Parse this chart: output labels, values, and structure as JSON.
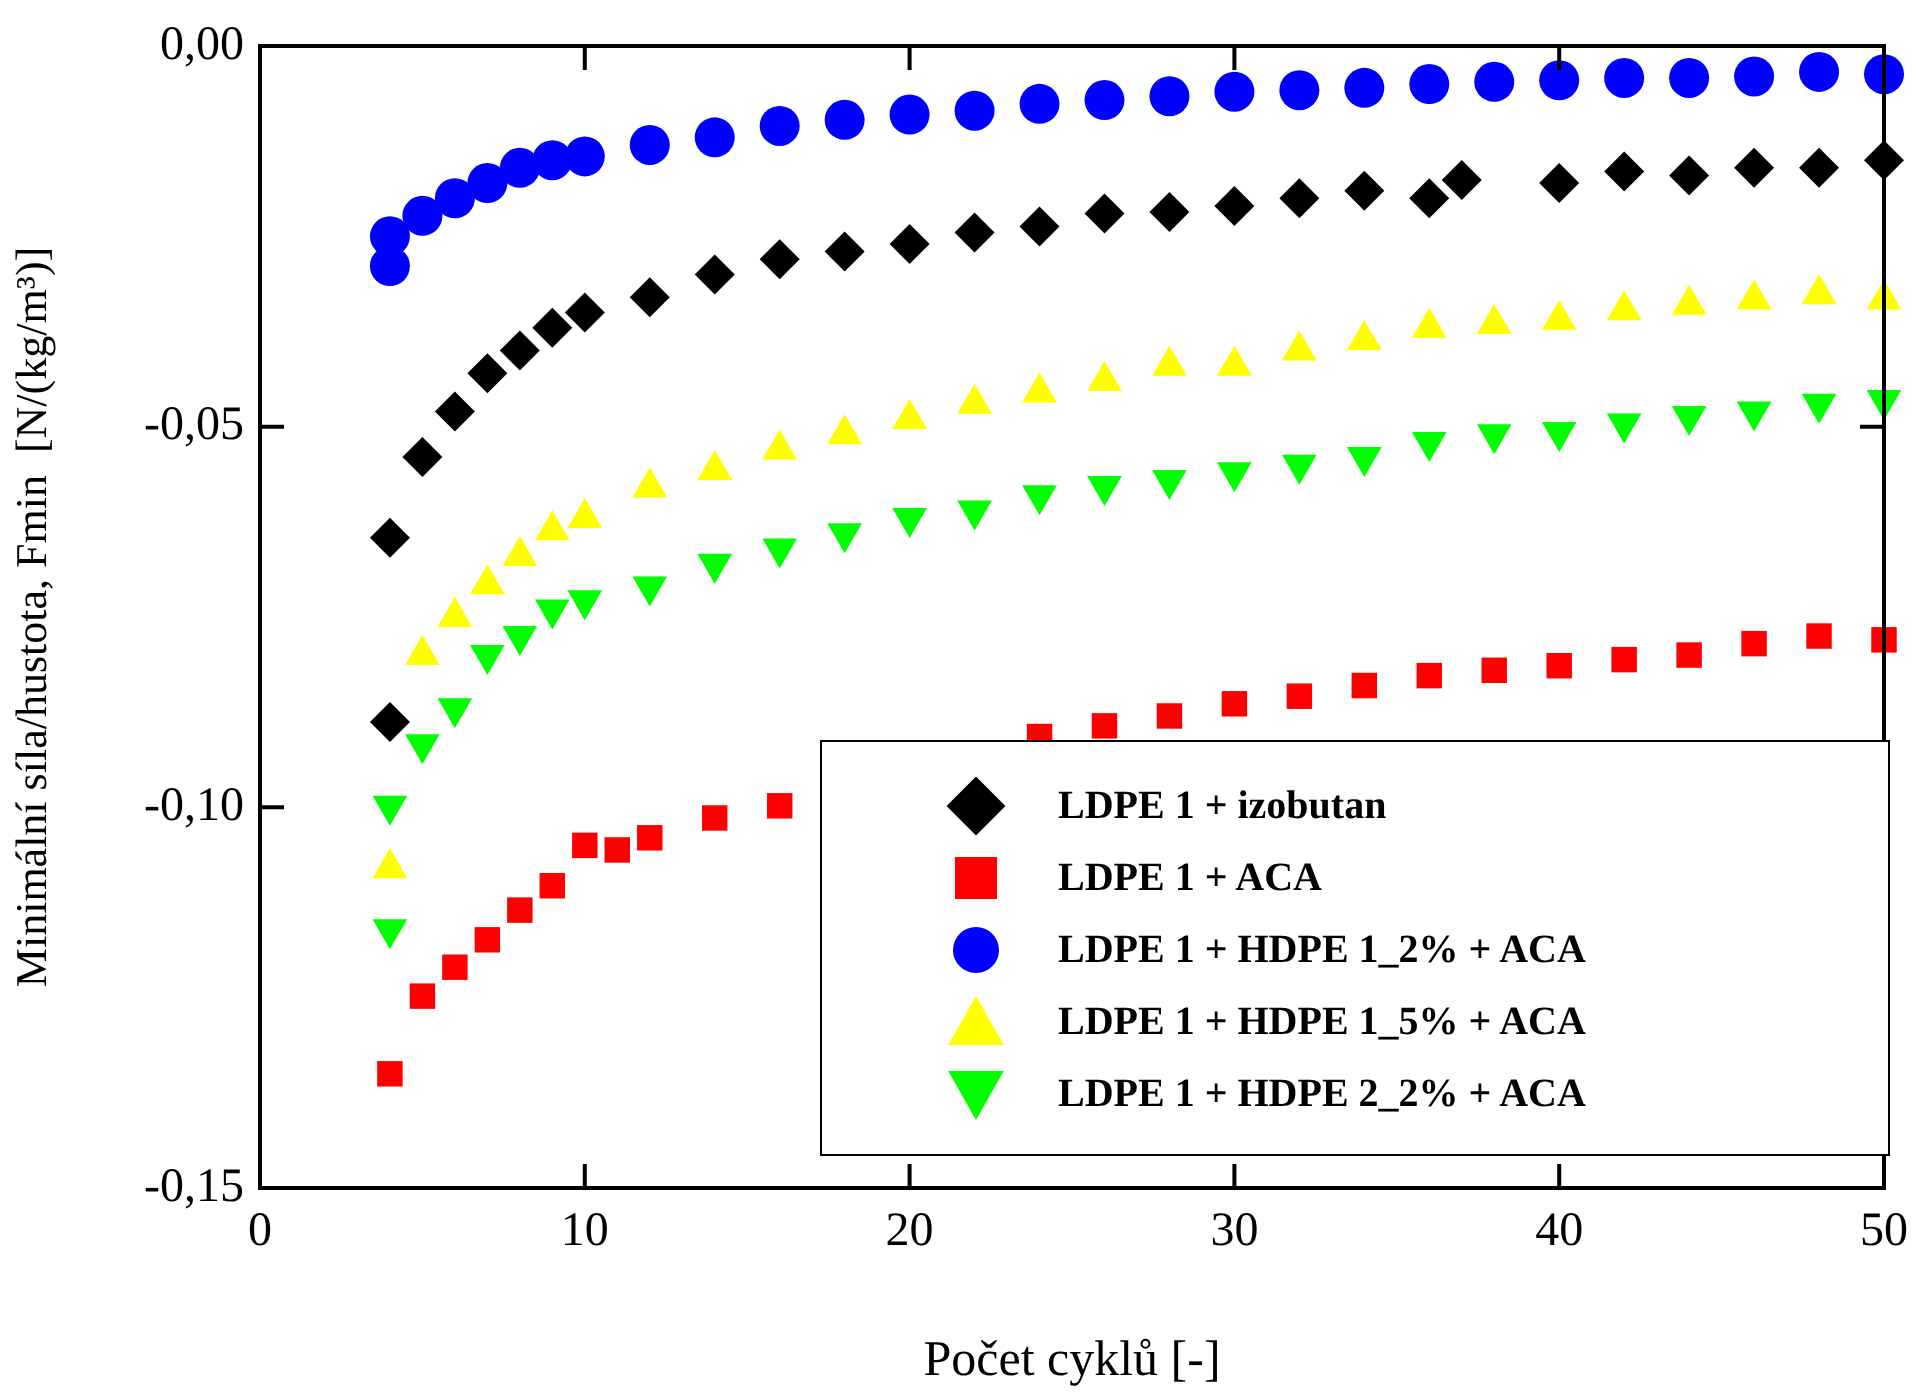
{
  "chart_data": {
    "type": "scatter",
    "xlabel": "Počet cyklů [-]",
    "ylabel": "Minimální síla/hustota, Fmin  [N/(kg/m³)]",
    "xlim": [
      0,
      50
    ],
    "xticks": [
      0,
      10,
      20,
      30,
      40,
      50
    ],
    "ylim": [
      -0.15,
      0
    ],
    "yticks": [
      {
        "value": -0.15,
        "label": "-0,15"
      },
      {
        "value": -0.1,
        "label": "-0,10"
      },
      {
        "value": -0.05,
        "label": "-0,05"
      },
      {
        "value": 0,
        "label": "0,00"
      }
    ],
    "grid": false,
    "legend": "bottom right",
    "series": [
      {
        "name": "LDPE 1 + izobutan",
        "color": "#000000",
        "marker": "diamond",
        "x": [
          4,
          4,
          5,
          6,
          7,
          8,
          9,
          10,
          12,
          14,
          16,
          18,
          20,
          22,
          24,
          26,
          28,
          30,
          32,
          34,
          36,
          37,
          40,
          42,
          44,
          46,
          48,
          50
        ],
        "values": [
          -0.0646,
          -0.0888,
          -0.054,
          -0.048,
          -0.043,
          -0.04,
          -0.037,
          -0.035,
          -0.033,
          -0.03,
          -0.028,
          -0.027,
          -0.026,
          -0.0245,
          -0.0237,
          -0.022,
          -0.0218,
          -0.021,
          -0.02,
          -0.019,
          -0.02,
          -0.0176,
          -0.018,
          -0.0165,
          -0.017,
          -0.016,
          -0.016,
          -0.015
        ]
      },
      {
        "name": "LDPE 1 + ACA",
        "color": "#ff0000",
        "marker": "square",
        "x": [
          4,
          5,
          6,
          7,
          8,
          9,
          10,
          11,
          12,
          14,
          16,
          18,
          20,
          22,
          24,
          26,
          28,
          30,
          32,
          34,
          36,
          38,
          40,
          42,
          44,
          46,
          48,
          50
        ],
        "values": [
          -0.135,
          -0.1248,
          -0.121,
          -0.1174,
          -0.1135,
          -0.1103,
          -0.105,
          -0.1056,
          -0.104,
          -0.1014,
          -0.0998,
          null,
          null,
          null,
          -0.0907,
          -0.0893,
          -0.088,
          -0.0864,
          -0.0854,
          -0.084,
          -0.0827,
          -0.082,
          -0.0814,
          -0.0806,
          -0.08,
          -0.0785,
          -0.0775,
          -0.078
        ]
      },
      {
        "name": "LDPE 1 + HDPE 1_2% + ACA",
        "color": "#0000ff",
        "marker": "circle",
        "x": [
          4,
          4,
          5,
          6,
          7,
          8,
          9,
          10,
          12,
          14,
          16,
          18,
          20,
          22,
          24,
          26,
          28,
          30,
          32,
          34,
          36,
          38,
          40,
          42,
          44,
          46,
          48,
          50
        ],
        "values": [
          -0.0289,
          -0.025,
          -0.0223,
          -0.02,
          -0.018,
          -0.016,
          -0.015,
          -0.0145,
          -0.013,
          -0.012,
          -0.0105,
          -0.0097,
          -0.009,
          -0.0085,
          -0.0076,
          -0.0071,
          -0.0066,
          -0.006,
          -0.0058,
          -0.0055,
          -0.005,
          -0.0047,
          -0.0045,
          -0.0042,
          -0.0042,
          -0.004,
          -0.0034,
          -0.0037
        ]
      },
      {
        "name": "LDPE 1 + HDPE 1_5% + ACA",
        "color": "#ffff00",
        "marker": "triangle",
        "x": [
          4,
          5,
          6,
          7,
          8,
          9,
          10,
          12,
          14,
          16,
          18,
          20,
          22,
          24,
          26,
          28,
          30,
          32,
          34,
          36,
          38,
          40,
          42,
          44,
          46,
          48,
          50
        ],
        "values": [
          -0.108,
          -0.08,
          -0.075,
          -0.0707,
          -0.067,
          -0.0636,
          -0.062,
          -0.058,
          -0.0557,
          -0.053,
          -0.051,
          -0.049,
          -0.047,
          -0.0455,
          -0.044,
          -0.042,
          -0.042,
          -0.04,
          -0.0386,
          -0.037,
          -0.0365,
          -0.036,
          -0.0347,
          -0.034,
          -0.0333,
          -0.0326,
          -0.0333
        ]
      },
      {
        "name": "LDPE 1 + HDPE 2_2% + ACA",
        "color": "#00ff00",
        "marker": "triangle-down",
        "x": [
          4,
          4,
          5,
          6,
          7,
          8,
          9,
          10,
          12,
          14,
          16,
          18,
          20,
          22,
          24,
          26,
          28,
          30,
          32,
          34,
          36,
          38,
          40,
          42,
          44,
          46,
          48,
          50
        ],
        "values": [
          -0.0998,
          -0.116,
          -0.0917,
          -0.087,
          -0.08,
          -0.0775,
          -0.074,
          -0.0728,
          -0.071,
          -0.068,
          -0.066,
          -0.064,
          -0.062,
          -0.061,
          -0.059,
          -0.0578,
          -0.057,
          -0.056,
          -0.055,
          -0.054,
          -0.052,
          -0.051,
          -0.0507,
          -0.0496,
          -0.0486,
          -0.048,
          -0.047,
          -0.0465
        ]
      }
    ]
  }
}
